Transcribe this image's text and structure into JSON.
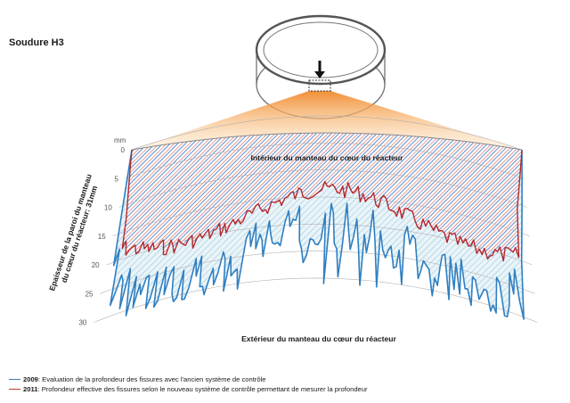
{
  "title": "Soudure H3",
  "unit": "mm",
  "depth_ticks": [
    "0",
    "5",
    "10",
    "15",
    "20",
    "25",
    "30"
  ],
  "ylabel": "Epaisseur de la paroi du manteau du cœur du réacteur: 31mm",
  "inner_label": "Intérieur du manteau du cœur du réacteur",
  "outer_label": "Extérieur du manteau du cœur du réacteur",
  "colors": {
    "blue": "#2f7fc1",
    "red": "#c0392b",
    "cylinder": "#666666",
    "cone": "#f0a046"
  },
  "legend": [
    {
      "year": "2009",
      "text": ": Evaluation de la profondeur des fissures avec l'ancien système de contrôle",
      "color": "#2f7fc1"
    },
    {
      "year": "2011",
      "text": ": Profondeur effective des fissures selon le nouveau système de contrôle permettant de mesurer la profondeur",
      "color": "#c0392b"
    }
  ],
  "icons": [
    "down-arrow-icon"
  ]
}
